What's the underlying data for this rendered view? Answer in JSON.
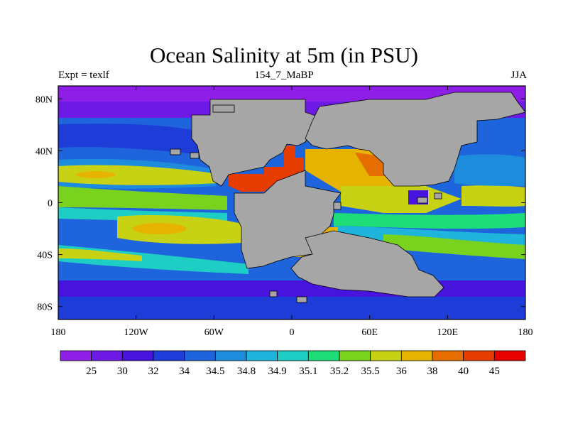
{
  "title": "Ocean Salinity at 5m (in PSU)",
  "subtitle_left": "Expt = texlf",
  "subtitle_center": "154_7_MaBP",
  "subtitle_right": "JJA",
  "map": {
    "projection": "cylindrical-equidistant",
    "lon_range": [
      -180,
      180
    ],
    "lat_range": [
      -90,
      90
    ],
    "x_ticks": [
      {
        "lon": -180,
        "label": "180"
      },
      {
        "lon": -120,
        "label": "120W"
      },
      {
        "lon": -60,
        "label": "60W"
      },
      {
        "lon": 0,
        "label": "0"
      },
      {
        "lon": 60,
        "label": "60E"
      },
      {
        "lon": 120,
        "label": "120E"
      },
      {
        "lon": 180,
        "label": "180"
      }
    ],
    "y_ticks": [
      {
        "lat": 80,
        "label": "80N"
      },
      {
        "lat": 40,
        "label": "40N"
      },
      {
        "lat": 0,
        "label": "0"
      },
      {
        "lat": -40,
        "label": "40S"
      },
      {
        "lat": -80,
        "label": "80S"
      }
    ],
    "land_color": "#a6a6a6"
  },
  "colorbar": {
    "labels": [
      "25",
      "30",
      "32",
      "34",
      "34.5",
      "34.8",
      "34.9",
      "35.1",
      "35.2",
      "35.5",
      "36",
      "38",
      "40",
      "45"
    ],
    "colors": [
      "#8c1ee6",
      "#6e1ae6",
      "#4614dc",
      "#1e3cd7",
      "#1e64dc",
      "#1e8cdc",
      "#1eb4dc",
      "#1ecdc3",
      "#1edc78",
      "#78d21e",
      "#c8d214",
      "#e6b400",
      "#e66e00",
      "#e63c00",
      "#e60000"
    ]
  }
}
